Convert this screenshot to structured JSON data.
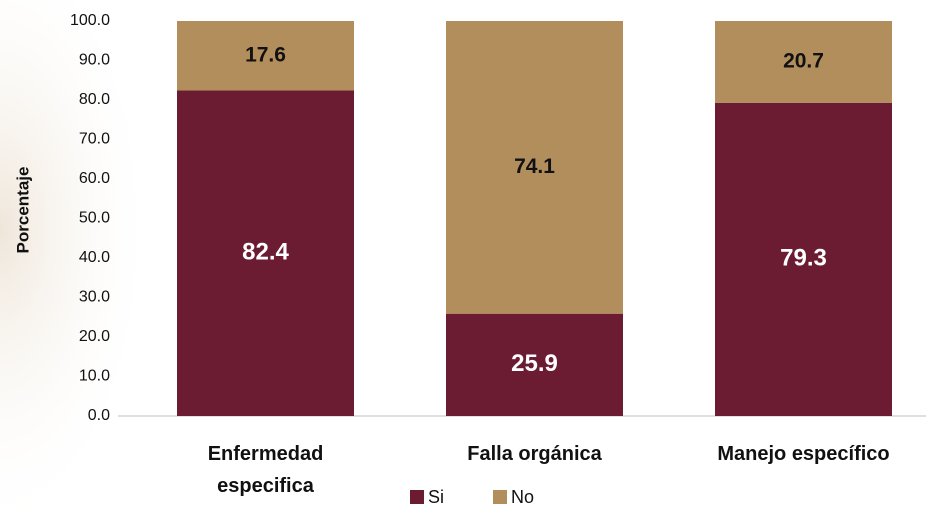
{
  "chart_data": {
    "type": "stacked-bar",
    "y_label": "Porcentaje",
    "categories": [
      "Enfermedad\nespecifica",
      "Falla orgánica",
      "Manejo específico"
    ],
    "series": [
      {
        "name": "Si",
        "color": "#6b1c33",
        "values": [
          82.4,
          25.9,
          79.3
        ]
      },
      {
        "name": "No",
        "color": "#b38e5d",
        "values": [
          17.6,
          74.1,
          20.7
        ]
      }
    ],
    "ylim": [
      0,
      100
    ],
    "yticks": [
      {
        "value": 0,
        "label": "0.0"
      },
      {
        "value": 10,
        "label": "10.0"
      },
      {
        "value": 20,
        "label": "20.0"
      },
      {
        "value": 30,
        "label": "30.0"
      },
      {
        "value": 40,
        "label": "40.0"
      },
      {
        "value": 50,
        "label": "50.0"
      },
      {
        "value": 60,
        "label": "60.0"
      },
      {
        "value": 70,
        "label": "70.0"
      },
      {
        "value": 80,
        "label": "80.0"
      },
      {
        "value": 90,
        "label": "90.0"
      },
      {
        "value": 100,
        "label": "100.0"
      }
    ],
    "grid": false,
    "legend": "bottom"
  }
}
